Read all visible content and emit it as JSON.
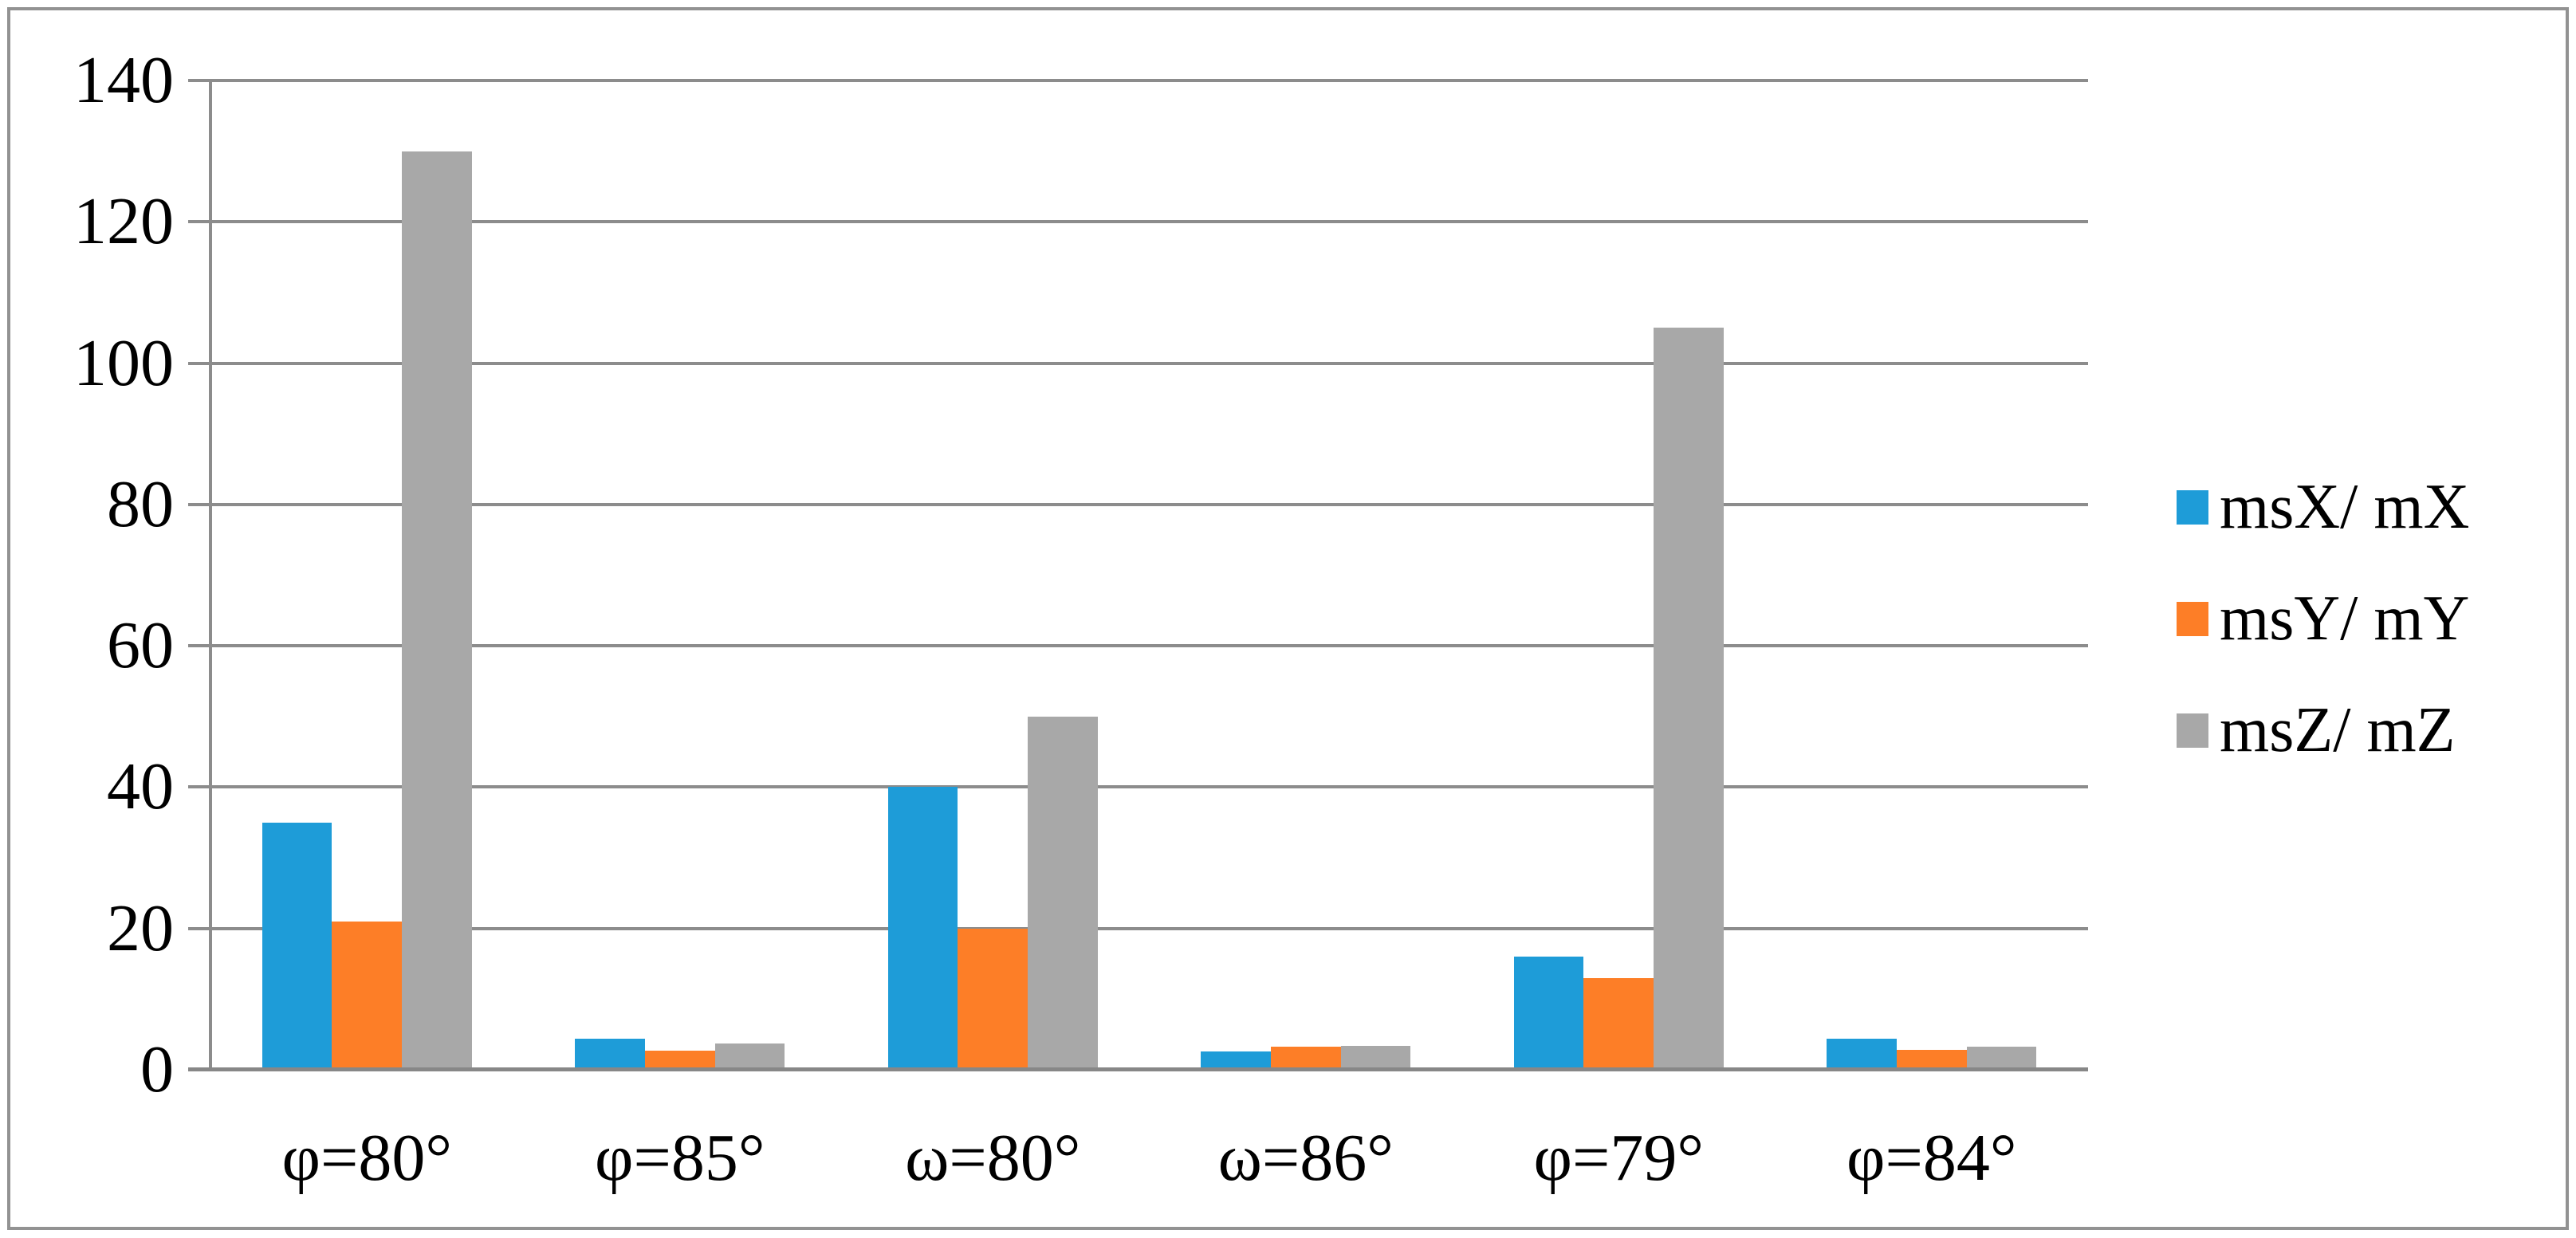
{
  "chart_data": {
    "type": "bar",
    "categories": [
      "φ=80°",
      "φ=85°",
      "ω=80°",
      "ω=86°",
      "φ=79°",
      "φ=84°"
    ],
    "series": [
      {
        "name": "msX/ mX",
        "color": "#1e9cd8",
        "values": [
          35,
          4.4,
          40,
          2.6,
          16,
          4.4
        ]
      },
      {
        "name": "msY/ mY",
        "color": "#fd7e27",
        "values": [
          21,
          2.7,
          20,
          3.3,
          13,
          2.8
        ]
      },
      {
        "name": "msZ/ mZ",
        "color": "#a8a8a8",
        "values": [
          130,
          3.7,
          50,
          3.4,
          105,
          3.3
        ]
      }
    ],
    "title": "",
    "xlabel": "",
    "ylabel": "",
    "ylim": [
      0,
      140
    ],
    "ytick_step": 20,
    "yticks": [
      "0",
      "20",
      "40",
      "60",
      "80",
      "100",
      "120",
      "140"
    ],
    "grid": true,
    "legend_position": "right",
    "colors": {
      "gridline": "#8c8c8c",
      "axis": "#878787",
      "frame_border": "#929292",
      "text": "#000000",
      "background": "#ffffff"
    }
  }
}
